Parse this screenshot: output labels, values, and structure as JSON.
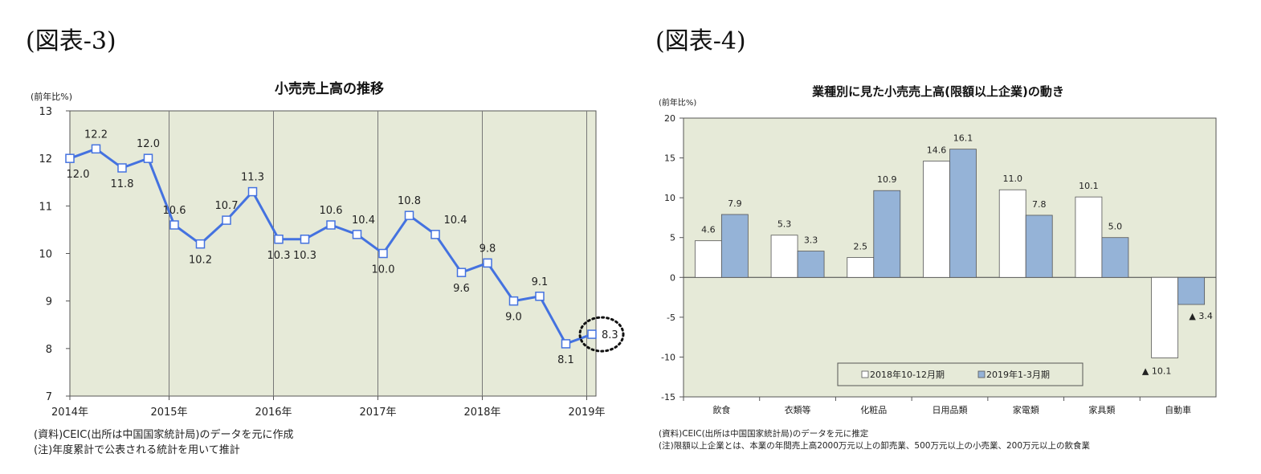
{
  "figures": [
    {
      "heading": "(図表-3)"
    },
    {
      "heading": "(図表-4)"
    }
  ],
  "chart_data": [
    {
      "type": "line",
      "title": "小売売上高の推移",
      "ylabel": "(前年比%)",
      "xlabel": "",
      "ylim": [
        7,
        13
      ],
      "yticks": [
        "7",
        "8",
        "9",
        "10",
        "11",
        "12",
        "13"
      ],
      "x_tick_labels": [
        "2014年",
        "2015年",
        "2016年",
        "2017年",
        "2018年",
        "2019年"
      ],
      "grid": "vertical lines at year boundaries",
      "background_color": "#e6ead8",
      "line_color": "#4472e0",
      "series": [
        {
          "values": [
            12.0,
            12.2,
            11.8,
            12.0,
            10.6,
            10.2,
            10.7,
            11.3,
            10.3,
            10.3,
            10.6,
            10.4,
            10.0,
            10.8,
            10.4,
            9.6,
            9.8,
            9.0,
            9.1,
            8.1,
            8.3
          ]
        }
      ],
      "data_labels": [
        "12.0",
        "12.2",
        "11.8",
        "12.0",
        "10.6",
        "10.2",
        "10.7",
        "11.3",
        "10.3",
        "10.3",
        "10.6",
        "10.4",
        "10.0",
        "10.8",
        "10.4",
        "9.6",
        "9.8",
        "9.0",
        "9.1",
        "8.1",
        "8.3"
      ],
      "annotations": [
        "dotted circle around the latest value 8.3"
      ],
      "notes": [
        "(資料)CEIC(出所は中国国家統計局)のデータを元に作成",
        "(注)年度累計で公表される統計を用いて推計"
      ]
    },
    {
      "type": "bar",
      "title": "業種別に見た小売売上高(限額以上企業)の動き",
      "ylabel": "(前年比%)",
      "xlabel": "",
      "ylim": [
        -15,
        20
      ],
      "yticks": [
        "-15",
        "-10",
        "-5",
        "0",
        "5",
        "10",
        "15",
        "20"
      ],
      "categories": [
        "飲食",
        "衣類等",
        "化粧品",
        "日用品類",
        "家電類",
        "家具類",
        "自動車"
      ],
      "background_color": "#e6ead8",
      "legend": "bottom-center",
      "series": [
        {
          "name": "2018年10-12月期",
          "color": "#ffffff",
          "values": [
            4.6,
            5.3,
            2.5,
            14.6,
            11.0,
            10.1,
            -10.1
          ],
          "labels": [
            "4.6",
            "5.3",
            "2.5",
            "14.6",
            "11.0",
            "10.1",
            "▲ 10.1"
          ]
        },
        {
          "name": "2019年1-3月期",
          "color": "#95b3d7",
          "values": [
            7.9,
            3.3,
            10.9,
            16.1,
            7.8,
            5.0,
            -3.4
          ],
          "labels": [
            "7.9",
            "3.3",
            "10.9",
            "16.1",
            "7.8",
            "5.0",
            "▲ 3.4"
          ]
        }
      ],
      "notes": [
        "(資料)CEIC(出所は中国国家統計局)のデータを元に推定",
        "(注)限額以上企業とは、本業の年間売上高2000万元以上の卸売業、500万元以上の小売業、200万元以上の飲食業"
      ]
    }
  ]
}
